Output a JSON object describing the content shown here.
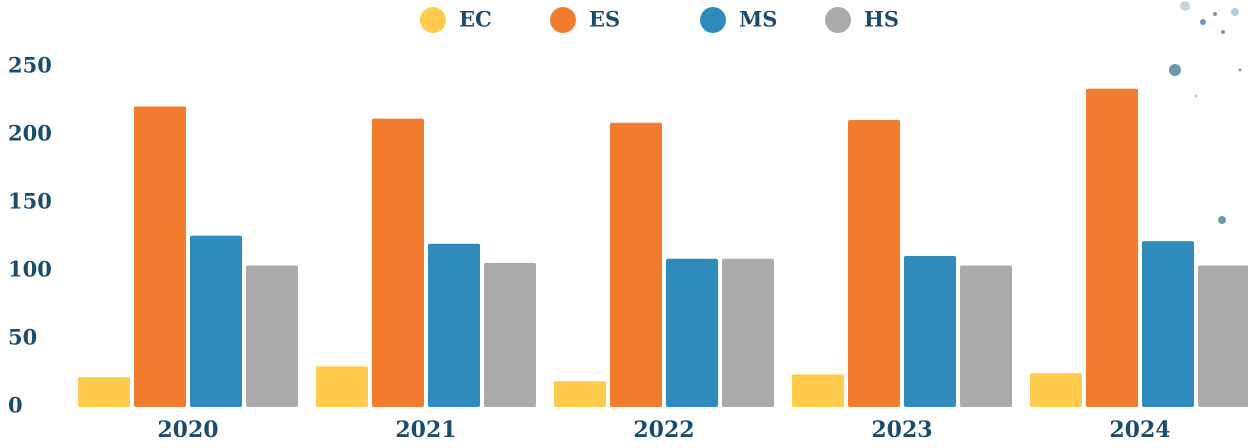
{
  "chart_data": {
    "type": "bar",
    "categories": [
      "2020",
      "2021",
      "2022",
      "2023",
      "2024"
    ],
    "series": [
      {
        "name": "EC",
        "color": "#fecb4f",
        "values": [
          22,
          30,
          19,
          24,
          25
        ]
      },
      {
        "name": "ES",
        "color": "#f27c2e",
        "values": [
          221,
          212,
          209,
          211,
          234
        ]
      },
      {
        "name": "MS",
        "color": "#2f8bbb",
        "values": [
          126,
          120,
          109,
          111,
          122
        ]
      },
      {
        "name": "HS",
        "color": "#aaaaaa",
        "values": [
          104,
          106,
          109,
          104,
          104
        ]
      }
    ],
    "ylim": [
      0,
      250
    ],
    "yticks": [
      0,
      50,
      100,
      150,
      200,
      250
    ],
    "grid": false,
    "legend": "top"
  }
}
